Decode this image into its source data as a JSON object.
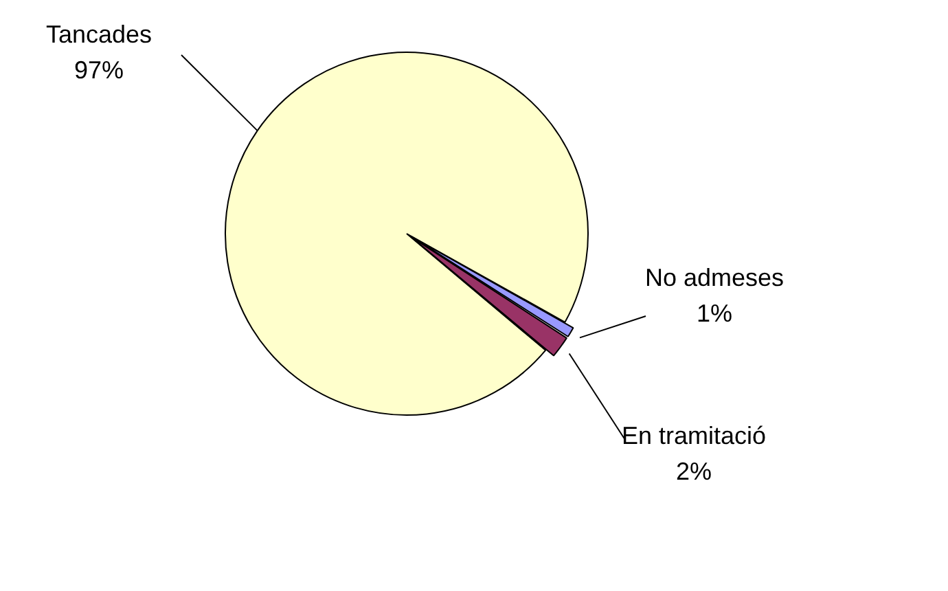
{
  "chart_data": {
    "type": "pie",
    "categories": [
      "Tancades",
      "No admeses",
      "En tramitació"
    ],
    "values": [
      97,
      1,
      2
    ],
    "value_labels": [
      "97%",
      "1%",
      "2%"
    ],
    "colors": [
      "#ffffcc",
      "#9999ff",
      "#993366"
    ],
    "legend": false
  }
}
